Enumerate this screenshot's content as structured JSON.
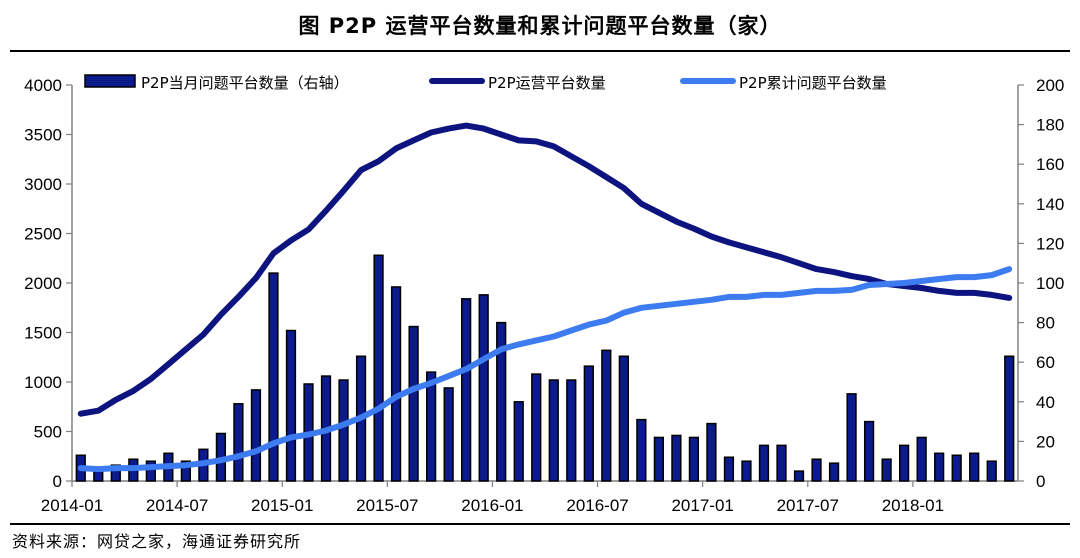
{
  "title": "图  P2P 运营平台数量和累计问题平台数量（家）",
  "source": "资料来源：网贷之家，海通证券研究所",
  "colors": {
    "bar_fill": "#0b1a8c",
    "bar_stroke": "#000000",
    "operating_line": "#0d1480",
    "cumulative_line": "#3d7bf0",
    "axis": "#808080"
  },
  "chart_data": {
    "type": "bar+line",
    "x_tick_labels": [
      "2014-01",
      "2014-07",
      "2015-01",
      "2015-07",
      "2016-01",
      "2016-07",
      "2017-01",
      "2017-07",
      "2018-01"
    ],
    "left_axis": {
      "ylim": [
        0,
        4000
      ],
      "ticks": [
        0,
        500,
        1000,
        1500,
        2000,
        2500,
        3000,
        3500,
        4000
      ]
    },
    "right_axis": {
      "ylim": [
        0,
        200
      ],
      "ticks": [
        0,
        20,
        40,
        60,
        80,
        100,
        120,
        140,
        160,
        180,
        200
      ]
    },
    "legend": {
      "monthly": "P2P当月问题平台数量（右轴）",
      "operating": "P2P运营平台数量",
      "cumulative": "P2P累计问题平台数量"
    },
    "x": [
      "2014-01",
      "2014-02",
      "2014-03",
      "2014-04",
      "2014-05",
      "2014-06",
      "2014-07",
      "2014-08",
      "2014-09",
      "2014-10",
      "2014-11",
      "2014-12",
      "2015-01",
      "2015-02",
      "2015-03",
      "2015-04",
      "2015-05",
      "2015-06",
      "2015-07",
      "2015-08",
      "2015-09",
      "2015-10",
      "2015-11",
      "2015-12",
      "2016-01",
      "2016-02",
      "2016-03",
      "2016-04",
      "2016-05",
      "2016-06",
      "2016-07",
      "2016-08",
      "2016-09",
      "2016-10",
      "2016-11",
      "2016-12",
      "2017-01",
      "2017-02",
      "2017-03",
      "2017-04",
      "2017-05",
      "2017-06",
      "2017-07",
      "2017-08",
      "2017-09",
      "2017-10",
      "2017-11",
      "2017-12",
      "2018-01",
      "2018-02",
      "2018-03",
      "2018-04",
      "2018-05",
      "2018-06"
    ],
    "series": [
      {
        "name": "P2P当月问题平台数量（右轴）",
        "type": "bar",
        "axis": "right",
        "values": [
          13,
          7,
          8,
          11,
          10,
          14,
          10,
          16,
          24,
          39,
          46,
          105,
          76,
          49,
          53,
          51,
          63,
          114,
          98,
          78,
          55,
          47,
          92,
          94,
          80,
          40,
          54,
          51,
          51,
          58,
          66,
          63,
          31,
          22,
          23,
          22,
          29,
          12,
          10,
          18,
          18,
          5,
          11,
          9,
          44,
          30,
          11,
          18,
          22,
          14,
          13,
          14,
          10,
          63
        ]
      },
      {
        "name": "P2P运营平台数量",
        "type": "line",
        "axis": "left",
        "values": [
          680,
          710,
          820,
          910,
          1030,
          1180,
          1330,
          1480,
          1680,
          1860,
          2050,
          2300,
          2430,
          2540,
          2730,
          2930,
          3140,
          3230,
          3360,
          3440,
          3520,
          3560,
          3590,
          3560,
          3500,
          3440,
          3430,
          3380,
          3280,
          3180,
          3070,
          2960,
          2800,
          2710,
          2620,
          2550,
          2470,
          2410,
          2360,
          2310,
          2260,
          2200,
          2140,
          2110,
          2070,
          2040,
          1990,
          1970,
          1950,
          1920,
          1900,
          1900,
          1880,
          1850
        ]
      },
      {
        "name": "P2P累计问题平台数量",
        "type": "line",
        "axis": "left",
        "values": [
          130,
          120,
          130,
          130,
          140,
          150,
          160,
          180,
          210,
          250,
          300,
          380,
          440,
          470,
          510,
          570,
          640,
          730,
          850,
          930,
          990,
          1060,
          1130,
          1230,
          1330,
          1380,
          1420,
          1460,
          1520,
          1580,
          1620,
          1700,
          1750,
          1770,
          1790,
          1810,
          1830,
          1860,
          1860,
          1880,
          1880,
          1900,
          1920,
          1920,
          1930,
          1980,
          1990,
          2000,
          2020,
          2040,
          2060,
          2060,
          2080,
          2140
        ]
      }
    ]
  }
}
